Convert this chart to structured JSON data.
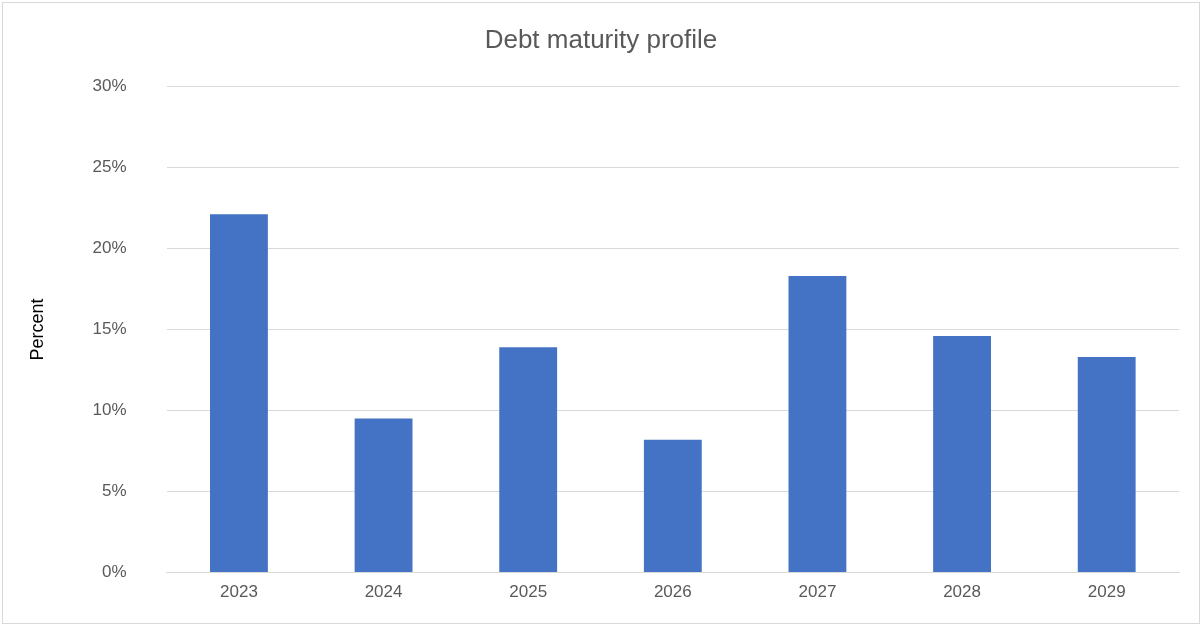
{
  "chart_data": {
    "type": "bar",
    "title": "Debt maturity profile",
    "ylabel": "Percent",
    "categories": [
      "2023",
      "2024",
      "2025",
      "2026",
      "2027",
      "2028",
      "2029"
    ],
    "values": [
      22.1,
      9.5,
      13.9,
      8.2,
      18.3,
      14.6,
      13.3
    ],
    "color": "#4472c4",
    "ylim": [
      0,
      30
    ],
    "yticks": [
      {
        "value": 0,
        "label": "0%"
      },
      {
        "value": 5,
        "label": "5%"
      },
      {
        "value": 10,
        "label": "10%"
      },
      {
        "value": 15,
        "label": "15%"
      },
      {
        "value": 20,
        "label": "20%"
      },
      {
        "value": 25,
        "label": "25%"
      },
      {
        "value": 30,
        "label": "30%"
      }
    ],
    "grid": "y",
    "legend": false
  }
}
